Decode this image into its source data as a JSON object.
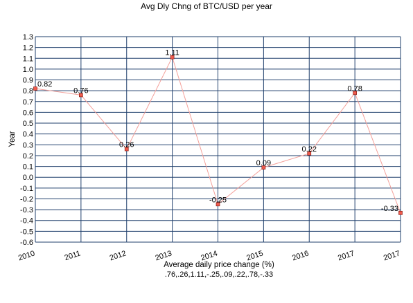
{
  "chart_data": {
    "type": "line",
    "title": "Avg Dly Chng of BTC/USD per year",
    "xlabel": "Average daily price change (%)",
    "ylabel": "Year",
    "footnote": ".76,.26,1.11,-.25,.09,.22,.78,-.33",
    "x_ticks": [
      "2010",
      "2011",
      "2012",
      "2013",
      "2014",
      "2015",
      "2016",
      "2017",
      "2017"
    ],
    "y_ticks": [
      "1.3",
      "1.2",
      "1.1",
      "1.0",
      "0.9",
      "0.8",
      "0.7",
      "0.6",
      "0.5",
      "0.4",
      "0.3",
      "0.2",
      "0.1",
      "0.0",
      "-0.1",
      "-0.2",
      "-0.3",
      "-0.4",
      "-0.5",
      "-0.6"
    ],
    "ylim": [
      -0.6,
      1.3
    ],
    "grid": true,
    "series": [
      {
        "points": [
          {
            "x": 0,
            "y": 0.82,
            "label": "0.82"
          },
          {
            "x": 1,
            "y": 0.76,
            "label": "0.76"
          },
          {
            "x": 2,
            "y": 0.26,
            "label": "0.26"
          },
          {
            "x": 3,
            "y": 1.11,
            "label": "1.11"
          },
          {
            "x": 4,
            "y": -0.25,
            "label": "-0.25"
          },
          {
            "x": 5,
            "y": 0.09,
            "label": "0.09"
          },
          {
            "x": 6,
            "y": 0.22,
            "label": "0.22"
          },
          {
            "x": 7,
            "y": 0.78,
            "label": "0.78"
          },
          {
            "x": 8,
            "y": -0.33,
            "label": "-0.33"
          }
        ]
      }
    ],
    "colors": {
      "grid": "#1f3f6b",
      "line": "#f4a09a",
      "marker_fill": "#ef5b4d",
      "marker_stroke": "#8a1b12"
    }
  }
}
